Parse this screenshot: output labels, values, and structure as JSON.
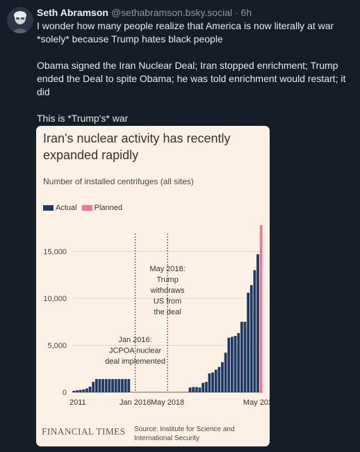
{
  "post": {
    "author_name": "Seth Abramson",
    "author_handle": "@sethabramson.bsky.social",
    "separator": "·",
    "age": "6h",
    "paragraphs": [
      "I wonder how many people realize that America is now literally at war *solely* because Trump hates black people",
      "Obama signed the Iran Nuclear Deal; Iran stopped enrichment; Trump ended the Deal to spite Obama; he was told enrichment would restart; it did",
      "This is *Trump's* war"
    ]
  },
  "embed": {
    "title": "Iran's nuclear activity has recently expanded rapidly",
    "subtitle": "Number of installed centrifuges (all sites)",
    "brand": "FINANCIAL TIMES",
    "source": "Source: Institute for Science and International Security"
  },
  "colors": {
    "actual": "#1f3b66",
    "planned": "#eb7996"
  },
  "chart_data": {
    "type": "bar",
    "title": "Iran's nuclear activity has recently expanded rapidly",
    "subtitle": "Number of installed centrifuges (all sites)",
    "legend": [
      "Actual",
      "Planned"
    ],
    "legend_position": "top-left",
    "ylim": [
      0,
      18000
    ],
    "yticks": [
      {
        "label": "0",
        "value": 0
      },
      {
        "label": "5,000",
        "value": 5000
      },
      {
        "label": "10,000",
        "value": 10000
      },
      {
        "label": "15,000",
        "value": 15000
      }
    ],
    "xticks": [
      {
        "label": "2011",
        "index": 0
      },
      {
        "label": "Jan 2016",
        "index": 19
      },
      {
        "label": "May 2018",
        "index": 29
      },
      {
        "label": "May 202",
        "index": 57
      }
    ],
    "grid": true,
    "series": [
      {
        "name": "Actual",
        "values": [
          150,
          200,
          250,
          300,
          400,
          600,
          1100,
          1400,
          1400,
          1400,
          1400,
          1400,
          1400,
          1400,
          1400,
          1400,
          1400,
          1400,
          0,
          0,
          0,
          0,
          0,
          0,
          0,
          0,
          0,
          0,
          0,
          0,
          0,
          0,
          0,
          0,
          0,
          0,
          500,
          550,
          550,
          500,
          1000,
          1100,
          2000,
          2100,
          2400,
          2700,
          3200,
          4200,
          5800,
          5900,
          6000,
          6300,
          7500,
          7500,
          10600,
          11400,
          13000,
          14700,
          0
        ]
      },
      {
        "name": "Planned",
        "values": [
          0,
          0,
          0,
          0,
          0,
          0,
          0,
          0,
          0,
          0,
          0,
          0,
          0,
          0,
          0,
          0,
          0,
          0,
          0,
          0,
          0,
          0,
          0,
          0,
          0,
          0,
          0,
          0,
          0,
          0,
          0,
          0,
          0,
          0,
          0,
          0,
          0,
          0,
          0,
          0,
          0,
          0,
          0,
          0,
          0,
          0,
          0,
          0,
          0,
          0,
          0,
          0,
          0,
          0,
          0,
          0,
          0,
          0,
          17800
        ]
      }
    ],
    "annotations": [
      {
        "index": 19,
        "lines": [
          "Jan 2016:",
          "JCPOA nuclear",
          "deal implemented"
        ]
      },
      {
        "index": 29,
        "lines": [
          "May 2018:",
          "Trump",
          "withdraws",
          "US from",
          "the deal"
        ]
      }
    ]
  }
}
